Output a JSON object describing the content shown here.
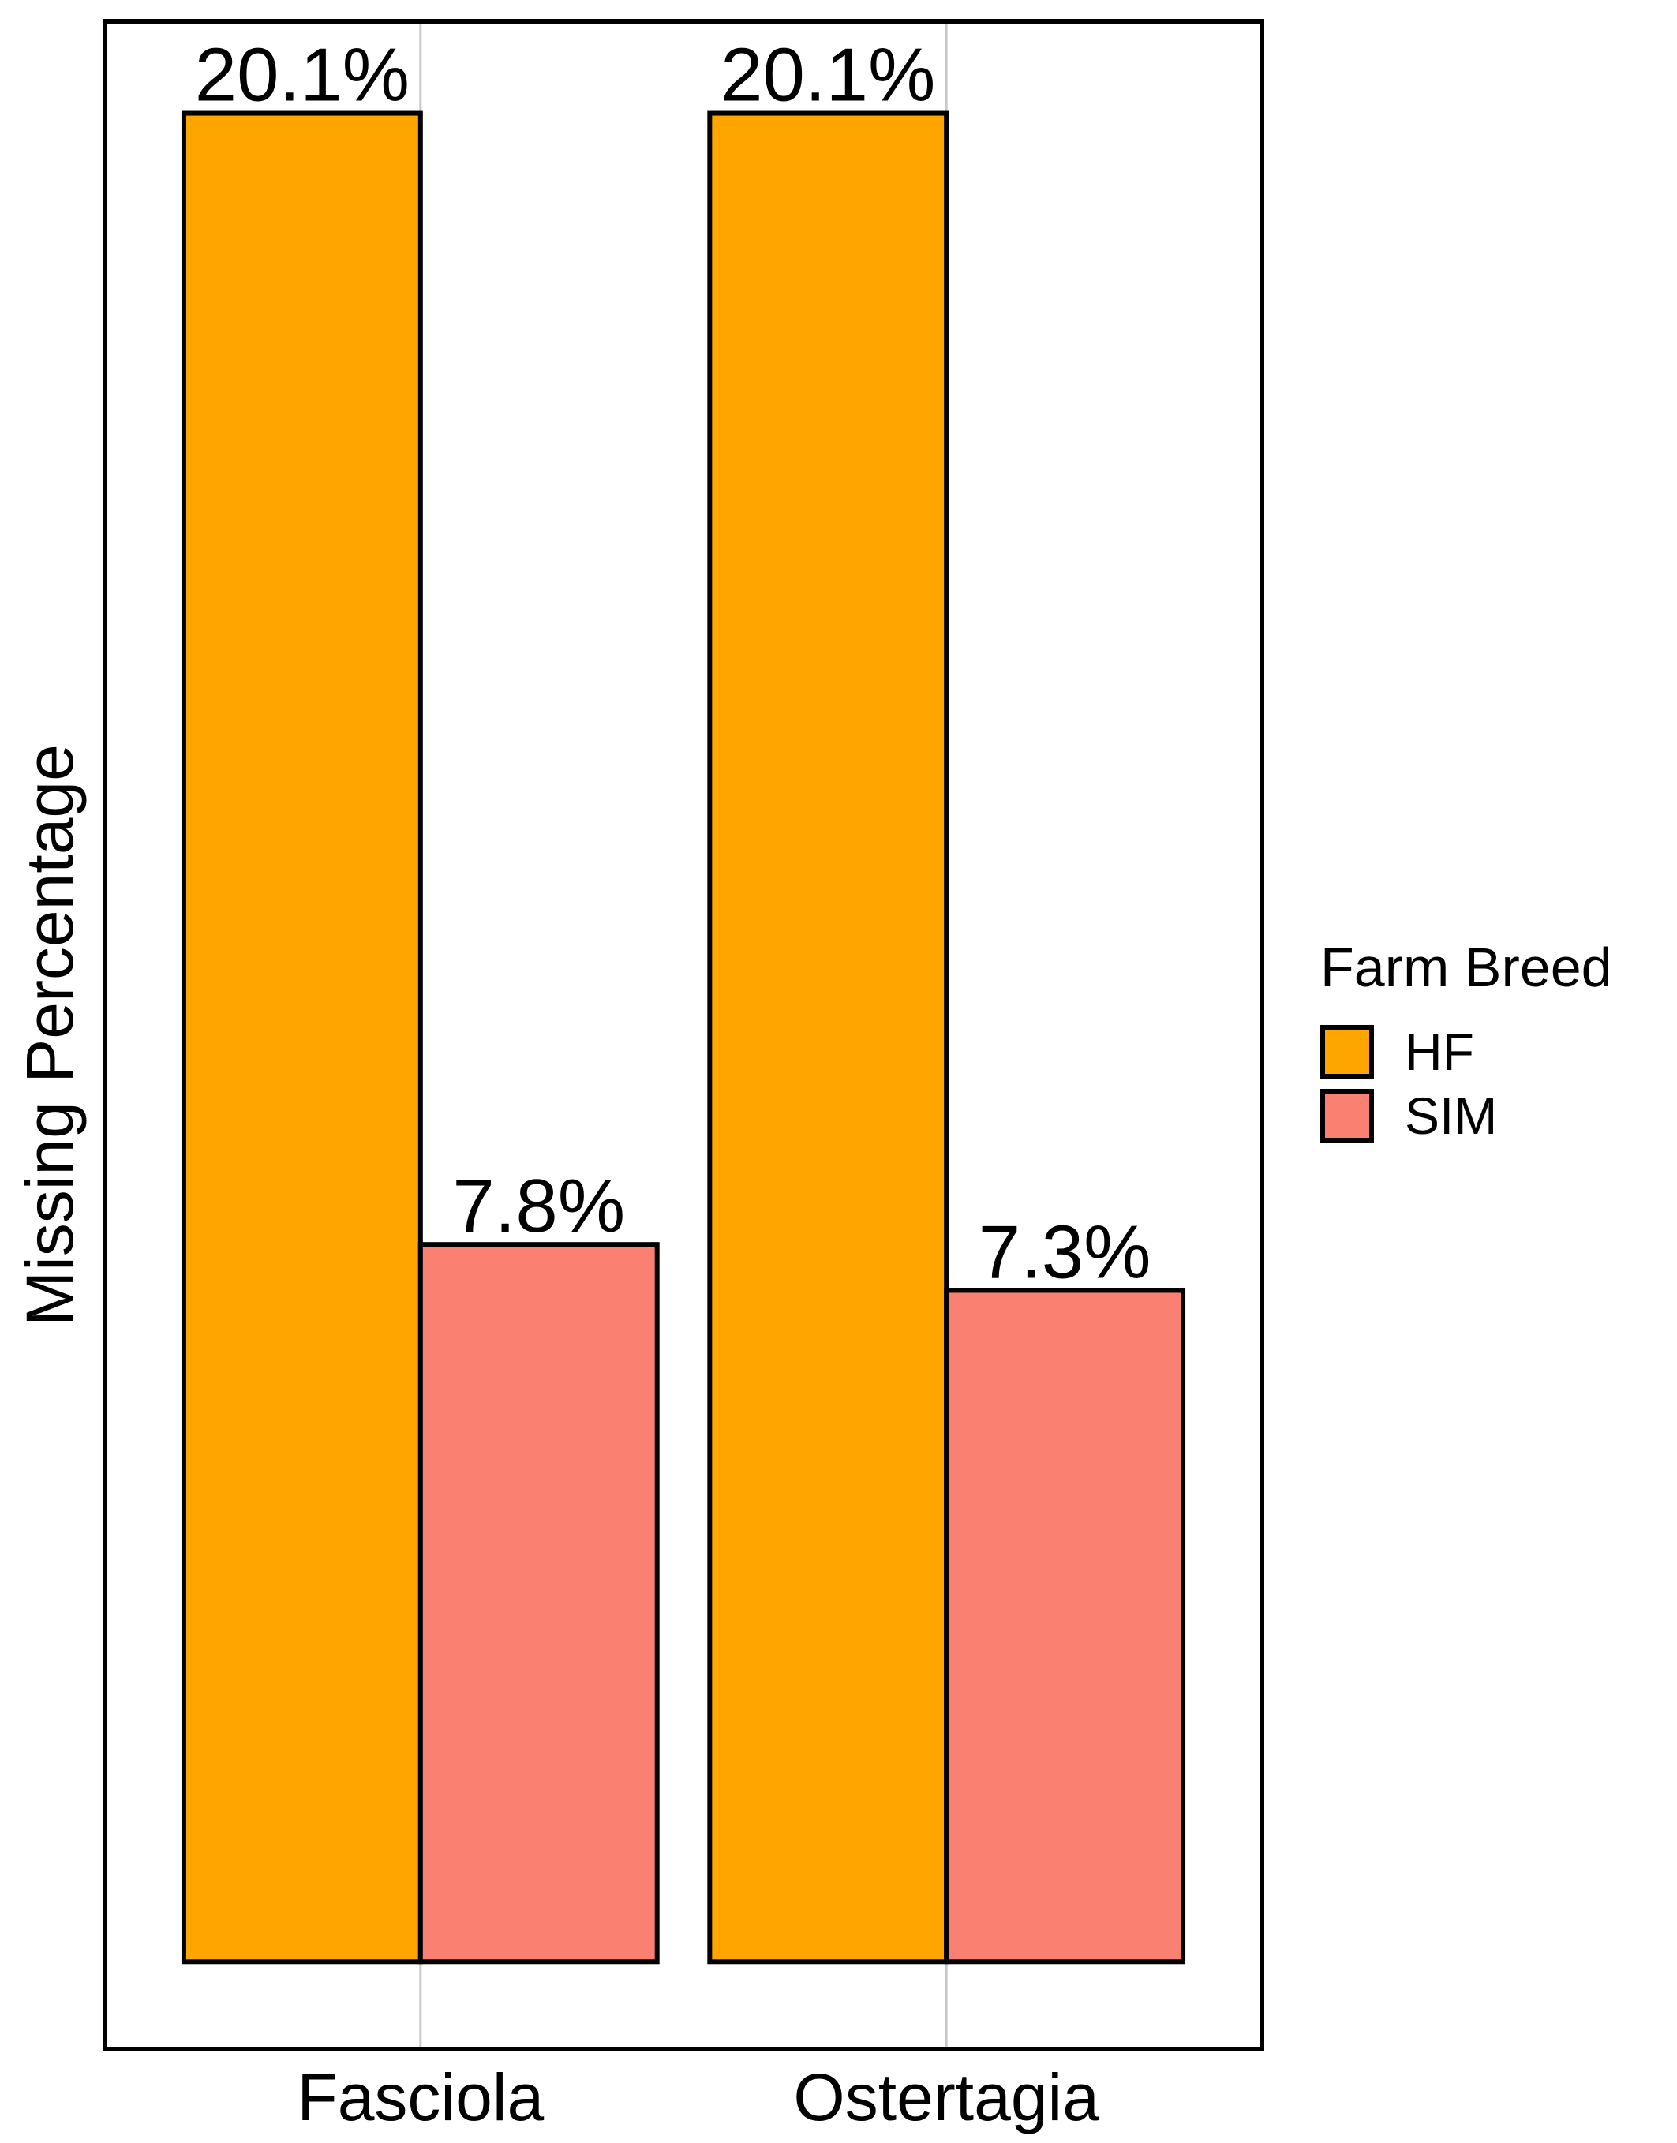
{
  "chart_data": {
    "type": "bar",
    "title": "",
    "xlabel": "",
    "ylabel": "Missing Percentage",
    "categories": [
      "Fasciola",
      "Ostertagia"
    ],
    "series": [
      {
        "name": "HF",
        "color": "#FFA500",
        "values": [
          20.1,
          20.1
        ],
        "labels": [
          "20.1%",
          "20.1%"
        ]
      },
      {
        "name": "SIM",
        "color": "#FA8072",
        "values": [
          7.8,
          7.3
        ],
        "labels": [
          "7.8%",
          "7.3%"
        ]
      }
    ],
    "ylim": [
      -0.95,
      21.1
    ],
    "grid": false,
    "legend": {
      "title": "Farm Breed",
      "placement": "right"
    }
  }
}
